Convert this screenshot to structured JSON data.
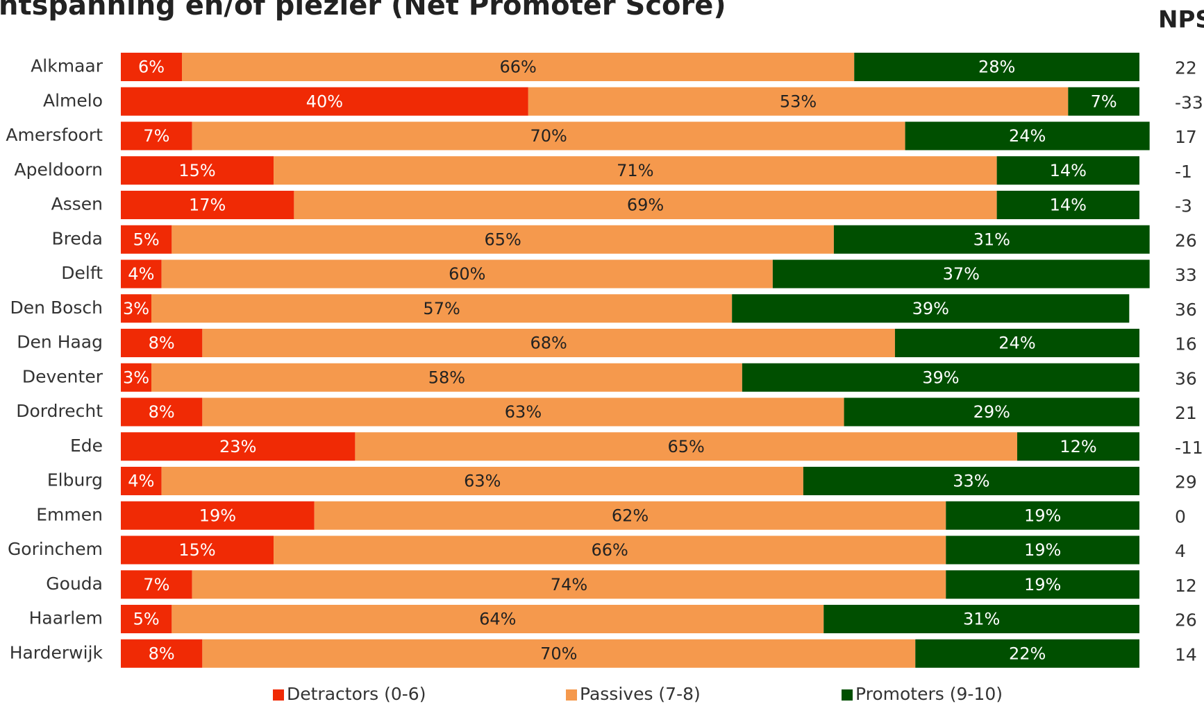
{
  "chart_data": {
    "type": "stacked-barh",
    "title": "ntspanning en/of plezier (Net Promoter Score)",
    "categories": [
      "Alkmaar",
      "Almelo",
      "Amersfoort",
      "Apeldoorn",
      "Assen",
      "Breda",
      "Delft",
      "Den Bosch",
      "Den Haag",
      "Deventer",
      "Dordrecht",
      "Ede",
      "Elburg",
      "Emmen",
      "Gorinchem",
      "Gouda",
      "Haarlem",
      "Harderwijk"
    ],
    "xlim": [
      0,
      100
    ],
    "series": [
      {
        "name": "Detractors (0-6)",
        "color": "#f02a05",
        "text_color": "#ffffff",
        "values": [
          6,
          40,
          7,
          15,
          17,
          5,
          4,
          3,
          8,
          3,
          8,
          23,
          4,
          19,
          15,
          7,
          5,
          8
        ],
        "value_labels": [
          "6%",
          "40%",
          "7%",
          "15%",
          "17%",
          "5%",
          "4%",
          "3%",
          "8%",
          "3%",
          "8%",
          "23%",
          "4%",
          "19%",
          "15%",
          "7%",
          "5%",
          "8%"
        ]
      },
      {
        "name": "Passives (7-8)",
        "color": "#f5994d",
        "text_color": "#222222",
        "values": [
          66,
          53,
          70,
          71,
          69,
          65,
          60,
          57,
          68,
          58,
          63,
          65,
          63,
          62,
          66,
          74,
          64,
          70
        ],
        "value_labels": [
          "66%",
          "53%",
          "70%",
          "71%",
          "69%",
          "65%",
          "60%",
          "57%",
          "68%",
          "58%",
          "63%",
          "65%",
          "63%",
          "62%",
          "66%",
          "74%",
          "64%",
          "70%"
        ]
      },
      {
        "name": "Promoters (9-10)",
        "color": "#004f00",
        "text_color": "#ffffff",
        "values": [
          28,
          7,
          24,
          14,
          14,
          31,
          37,
          39,
          24,
          39,
          29,
          12,
          33,
          19,
          19,
          19,
          31,
          22
        ],
        "value_labels": [
          "28%",
          "7%",
          "24%",
          "14%",
          "14%",
          "31%",
          "37%",
          "39%",
          "24%",
          "39%",
          "29%",
          "12%",
          "33%",
          "19%",
          "19%",
          "19%",
          "31%",
          "22%"
        ]
      }
    ],
    "nps": {
      "title": "NPS",
      "values": [
        22,
        -33,
        17,
        -1,
        -3,
        26,
        33,
        36,
        16,
        36,
        21,
        -11,
        29,
        0,
        4,
        12,
        26,
        14
      ]
    }
  }
}
